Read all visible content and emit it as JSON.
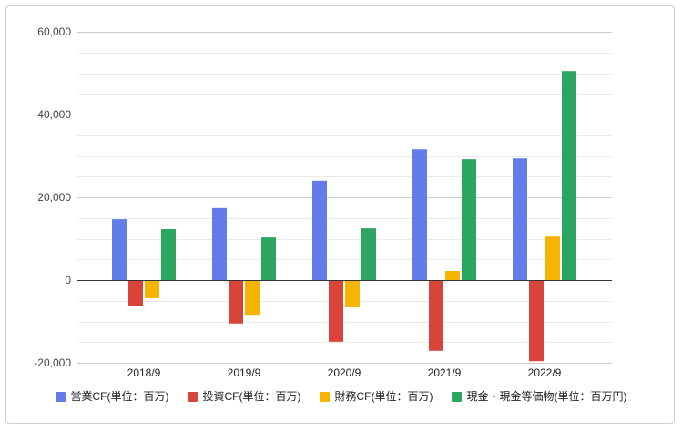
{
  "chart_data": {
    "type": "bar",
    "title": "",
    "xlabel": "",
    "ylabel": "",
    "categories": [
      "2018/9",
      "2019/9",
      "2020/9",
      "2021/9",
      "2022/9"
    ],
    "series": [
      {
        "name": "営業CF(単位：百万)",
        "color": "#627DE9",
        "values": [
          14700,
          17400,
          24000,
          31600,
          29400
        ]
      },
      {
        "name": "投資CF(単位：百万)",
        "color": "#D9443A",
        "values": [
          -6300,
          -10500,
          -14900,
          -17100,
          -19600
        ]
      },
      {
        "name": "財務CF(単位：百万)",
        "color": "#F4B400",
        "values": [
          -4400,
          -8400,
          -6600,
          2200,
          10500
        ]
      },
      {
        "name": "現金・現金等価物(単位：百万円)",
        "color": "#2BA55F",
        "values": [
          12300,
          10300,
          12500,
          29200,
          50500
        ]
      }
    ],
    "yticks": [
      {
        "value": 60000,
        "label": "60,000"
      },
      {
        "value": 40000,
        "label": "40,000"
      },
      {
        "value": 20000,
        "label": "20,000"
      },
      {
        "value": 0,
        "label": "0"
      },
      {
        "value": -20000,
        "label": "-20,000"
      }
    ],
    "ylim": [
      -20000,
      60000
    ],
    "grid": true,
    "minor_grid": true,
    "legend": "bottom"
  }
}
